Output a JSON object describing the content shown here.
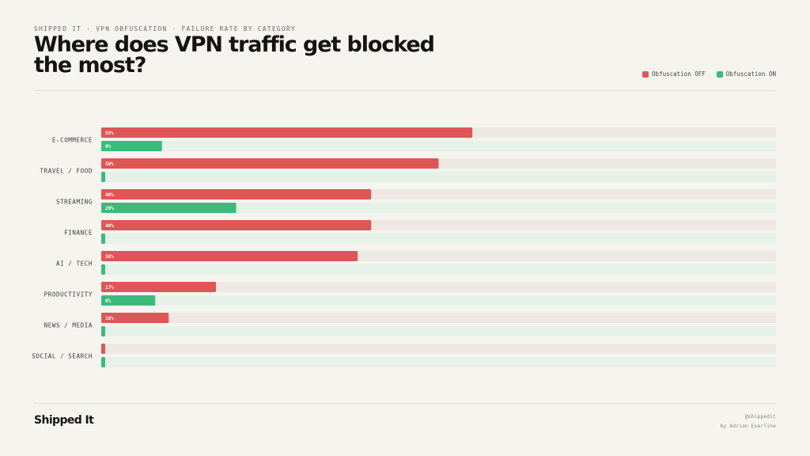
{
  "header": {
    "kicker": "SHIPPED IT · VPN OBFUSCATION · FAILURE RATE BY CATEGORY",
    "title": "Where does VPN traffic get blocked the most?"
  },
  "legend": {
    "off_label": "Obfuscation OFF",
    "on_label": "Obfuscation ON"
  },
  "colors": {
    "off": "#e05555",
    "on": "#3dba7a",
    "off_track": "#ede9e2",
    "on_track": "#e6f1ea"
  },
  "chart_data": {
    "type": "bar",
    "orientation": "horizontal",
    "categories": [
      "E-COMMERCE",
      "TRAVEL / FOOD",
      "STREAMING",
      "FINANCE",
      "AI / TECH",
      "PRODUCTIVITY",
      "NEWS / MEDIA",
      "SOCIAL / SEARCH"
    ],
    "series": [
      {
        "name": "Obfuscation OFF",
        "values": [
          55,
          50,
          40,
          40,
          38,
          17,
          10,
          0
        ]
      },
      {
        "name": "Obfuscation ON",
        "values": [
          9,
          0,
          20,
          0,
          0,
          8,
          0,
          0
        ]
      }
    ],
    "xlim": [
      0,
      100
    ],
    "value_suffix": "%",
    "grid": false,
    "legend_position": "top-right"
  },
  "footer": {
    "brand": "Shipped It",
    "handle": "@shippedit",
    "author": "by Adrian Everline"
  }
}
